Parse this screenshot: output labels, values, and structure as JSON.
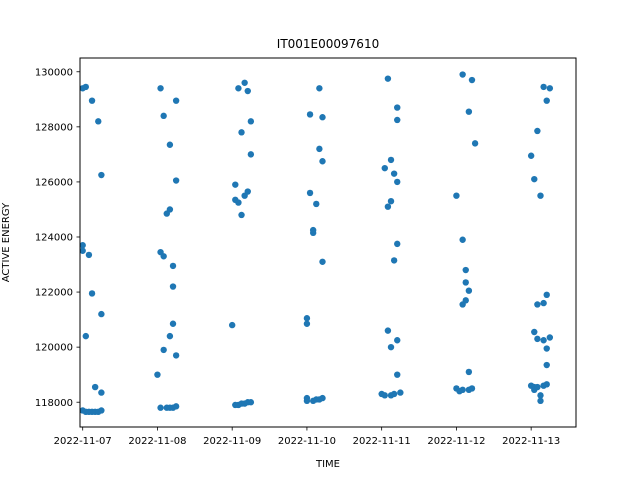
{
  "chart_data": {
    "type": "scatter",
    "title": "IT001E00097610",
    "xlabel": "TIME",
    "ylabel": "ACTIVE ENERGY",
    "x_type": "date",
    "xlim": [
      "2022-11-06T23:08",
      "2022-11-13T14:24"
    ],
    "ylim": [
      117100,
      130500
    ],
    "x_ticks": [
      "2022-11-07",
      "2022-11-08",
      "2022-11-09",
      "2022-11-10",
      "2022-11-11",
      "2022-11-12",
      "2022-11-13"
    ],
    "y_ticks": [
      118000,
      120000,
      122000,
      124000,
      126000,
      128000,
      130000
    ],
    "y_tick_labels": [
      "118000",
      "120000",
      "122000",
      "124000",
      "126000",
      "128000",
      "130000"
    ],
    "grid": false,
    "legend": "none",
    "marker_color": "#1f77b4",
    "series": [
      {
        "points": [
          [
            "2022-11-07T00:00",
            123700
          ],
          [
            "2022-11-07T00:00",
            123500
          ],
          [
            "2022-11-07T00:00",
            129400
          ],
          [
            "2022-11-07T00:00",
            117700
          ],
          [
            "2022-11-07T01:00",
            120400
          ],
          [
            "2022-11-07T01:00",
            117650
          ],
          [
            "2022-11-07T01:00",
            129450
          ],
          [
            "2022-11-07T02:00",
            117650
          ],
          [
            "2022-11-07T02:00",
            123350
          ],
          [
            "2022-11-07T03:00",
            121950
          ],
          [
            "2022-11-07T03:00",
            117650
          ],
          [
            "2022-11-07T03:00",
            128950
          ],
          [
            "2022-11-07T04:00",
            117650
          ],
          [
            "2022-11-07T04:00",
            118550
          ],
          [
            "2022-11-07T05:00",
            117650
          ],
          [
            "2022-11-07T05:00",
            128200
          ],
          [
            "2022-11-07T06:00",
            126250
          ],
          [
            "2022-11-07T06:00",
            117700
          ],
          [
            "2022-11-07T06:00",
            121200
          ],
          [
            "2022-11-07T06:00",
            118350
          ],
          [
            "2022-11-08T00:00",
            119000
          ],
          [
            "2022-11-08T01:00",
            123450
          ],
          [
            "2022-11-08T01:00",
            129400
          ],
          [
            "2022-11-08T01:00",
            117800
          ],
          [
            "2022-11-08T02:00",
            123300
          ],
          [
            "2022-11-08T02:00",
            119900
          ],
          [
            "2022-11-08T02:00",
            128400
          ],
          [
            "2022-11-08T03:00",
            117800
          ],
          [
            "2022-11-08T03:00",
            124850
          ],
          [
            "2022-11-08T04:00",
            125000
          ],
          [
            "2022-11-08T04:00",
            127350
          ],
          [
            "2022-11-08T04:00",
            120400
          ],
          [
            "2022-11-08T04:00",
            117800
          ],
          [
            "2022-11-08T05:00",
            120850
          ],
          [
            "2022-11-08T05:00",
            122950
          ],
          [
            "2022-11-08T05:00",
            122200
          ],
          [
            "2022-11-08T05:00",
            117800
          ],
          [
            "2022-11-08T06:00",
            128950
          ],
          [
            "2022-11-08T06:00",
            126050
          ],
          [
            "2022-11-08T06:00",
            119700
          ],
          [
            "2022-11-08T06:00",
            117850
          ],
          [
            "2022-11-09T00:00",
            120800
          ],
          [
            "2022-11-09T01:00",
            125900
          ],
          [
            "2022-11-09T01:00",
            117900
          ],
          [
            "2022-11-09T01:00",
            125350
          ],
          [
            "2022-11-09T02:00",
            125250
          ],
          [
            "2022-11-09T02:00",
            129400
          ],
          [
            "2022-11-09T02:00",
            117900
          ],
          [
            "2022-11-09T03:00",
            127800
          ],
          [
            "2022-11-09T03:00",
            124800
          ],
          [
            "2022-11-09T03:00",
            117950
          ],
          [
            "2022-11-09T04:00",
            129600
          ],
          [
            "2022-11-09T04:00",
            125500
          ],
          [
            "2022-11-09T04:00",
            117950
          ],
          [
            "2022-11-09T05:00",
            125650
          ],
          [
            "2022-11-09T05:00",
            129300
          ],
          [
            "2022-11-09T05:00",
            118000
          ],
          [
            "2022-11-09T06:00",
            127000
          ],
          [
            "2022-11-09T06:00",
            128200
          ],
          [
            "2022-11-09T06:00",
            118000
          ],
          [
            "2022-11-10T00:00",
            121050
          ],
          [
            "2022-11-10T00:00",
            118150
          ],
          [
            "2022-11-10T00:00",
            120850
          ],
          [
            "2022-11-10T00:00",
            118050
          ],
          [
            "2022-11-10T01:00",
            128450
          ],
          [
            "2022-11-10T01:00",
            125600
          ],
          [
            "2022-11-10T02:00",
            124150
          ],
          [
            "2022-11-10T02:00",
            118050
          ],
          [
            "2022-11-10T02:00",
            124250
          ],
          [
            "2022-11-10T03:00",
            118100
          ],
          [
            "2022-11-10T03:00",
            125200
          ],
          [
            "2022-11-10T04:00",
            129400
          ],
          [
            "2022-11-10T04:00",
            127200
          ],
          [
            "2022-11-10T04:00",
            118100
          ],
          [
            "2022-11-10T05:00",
            128350
          ],
          [
            "2022-11-10T05:00",
            126750
          ],
          [
            "2022-11-10T05:00",
            123100
          ],
          [
            "2022-11-10T05:00",
            118150
          ],
          [
            "2022-11-11T00:00",
            118300
          ],
          [
            "2022-11-11T01:00",
            126500
          ],
          [
            "2022-11-11T01:00",
            118250
          ],
          [
            "2022-11-11T02:00",
            129750
          ],
          [
            "2022-11-11T02:00",
            125100
          ],
          [
            "2022-11-11T02:00",
            120600
          ],
          [
            "2022-11-11T03:00",
            125300
          ],
          [
            "2022-11-11T03:00",
            126800
          ],
          [
            "2022-11-11T03:00",
            118250
          ],
          [
            "2022-11-11T03:00",
            120000
          ],
          [
            "2022-11-11T04:00",
            123150
          ],
          [
            "2022-11-11T04:00",
            126300
          ],
          [
            "2022-11-11T04:00",
            118300
          ],
          [
            "2022-11-11T05:00",
            128700
          ],
          [
            "2022-11-11T05:00",
            128250
          ],
          [
            "2022-11-11T05:00",
            126000
          ],
          [
            "2022-11-11T05:00",
            123750
          ],
          [
            "2022-11-11T05:00",
            120250
          ],
          [
            "2022-11-11T05:00",
            119000
          ],
          [
            "2022-11-11T06:00",
            118350
          ],
          [
            "2022-11-12T00:00",
            118500
          ],
          [
            "2022-11-12T00:00",
            125500
          ],
          [
            "2022-11-12T01:00",
            118400
          ],
          [
            "2022-11-12T02:00",
            129900
          ],
          [
            "2022-11-12T02:00",
            123900
          ],
          [
            "2022-11-12T02:00",
            121550
          ],
          [
            "2022-11-12T02:00",
            118450
          ],
          [
            "2022-11-12T03:00",
            121700
          ],
          [
            "2022-11-12T03:00",
            122800
          ],
          [
            "2022-11-12T03:00",
            122350
          ],
          [
            "2022-11-12T04:00",
            128550
          ],
          [
            "2022-11-12T04:00",
            122050
          ],
          [
            "2022-11-12T04:00",
            119100
          ],
          [
            "2022-11-12T04:00",
            118450
          ],
          [
            "2022-11-12T05:00",
            129700
          ],
          [
            "2022-11-12T05:00",
            118500
          ],
          [
            "2022-11-12T06:00",
            127400
          ],
          [
            "2022-11-13T00:00",
            126950
          ],
          [
            "2022-11-13T00:00",
            118600
          ],
          [
            "2022-11-13T01:00",
            126100
          ],
          [
            "2022-11-13T01:00",
            120550
          ],
          [
            "2022-11-13T01:00",
            118550
          ],
          [
            "2022-11-13T01:00",
            118450
          ],
          [
            "2022-11-13T02:00",
            127850
          ],
          [
            "2022-11-13T02:00",
            121550
          ],
          [
            "2022-11-13T02:00",
            120300
          ],
          [
            "2022-11-13T02:00",
            118550
          ],
          [
            "2022-11-13T03:00",
            125500
          ],
          [
            "2022-11-13T03:00",
            118050
          ],
          [
            "2022-11-13T03:00",
            118250
          ],
          [
            "2022-11-13T04:00",
            129450
          ],
          [
            "2022-11-13T04:00",
            121600
          ],
          [
            "2022-11-13T04:00",
            120250
          ],
          [
            "2022-11-13T04:00",
            118600
          ],
          [
            "2022-11-13T05:00",
            128950
          ],
          [
            "2022-11-13T05:00",
            121900
          ],
          [
            "2022-11-13T05:00",
            119950
          ],
          [
            "2022-11-13T05:00",
            119350
          ],
          [
            "2022-11-13T05:00",
            118650
          ],
          [
            "2022-11-13T06:00",
            129400
          ],
          [
            "2022-11-13T06:00",
            120350
          ]
        ]
      }
    ]
  }
}
